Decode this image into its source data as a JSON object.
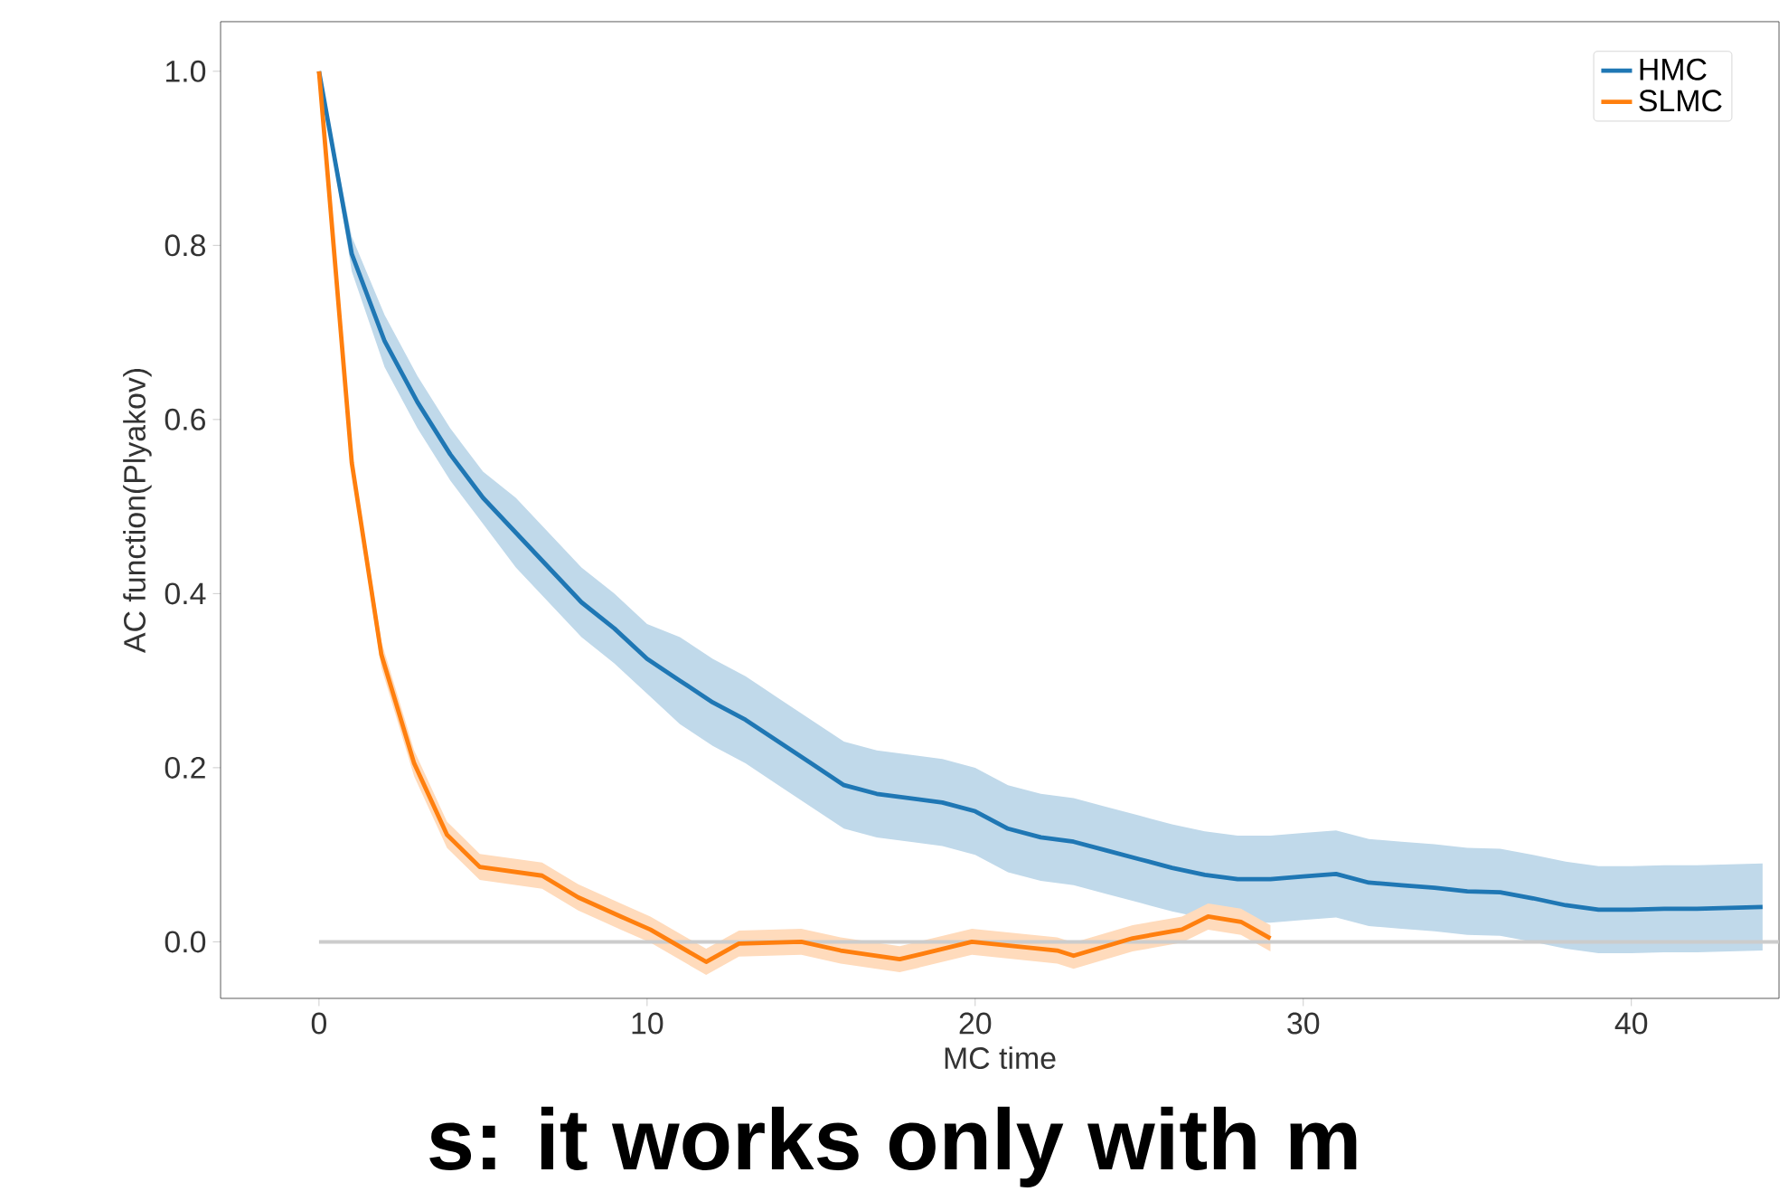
{
  "chart_data": {
    "type": "line",
    "xlabel": "MC time",
    "ylabel": "AC function(Plyakov)",
    "xlim": [
      -3,
      44.5
    ],
    "ylim": [
      -0.065,
      1.057
    ],
    "xticks": [
      0,
      10,
      20,
      30,
      40
    ],
    "yticks": [
      {
        "value": 0,
        "label": "0.0"
      },
      {
        "value": 0.2,
        "label": "0.2"
      },
      {
        "value": 0.4,
        "label": "0.4"
      },
      {
        "value": 0.6,
        "label": "0.6"
      },
      {
        "value": 0.8,
        "label": "0.8"
      },
      {
        "value": 1,
        "label": "1.0"
      }
    ],
    "legend": "top right",
    "grid": false,
    "ref_lines": [
      {
        "axis": "y",
        "value": 0,
        "color": "#cccccc"
      }
    ],
    "annotations": [
      "s: it works only with m"
    ],
    "series": [
      {
        "name": "HMC",
        "color": "#1f77b4",
        "x": [
          0,
          1,
          2,
          3,
          4,
          5,
          6,
          7,
          8,
          9,
          10,
          11,
          12,
          13,
          14,
          15,
          16,
          17,
          18,
          19,
          20,
          21,
          22,
          23,
          24,
          25,
          26,
          27,
          28,
          29,
          30,
          31,
          32,
          33,
          34,
          35,
          36,
          37,
          38,
          39,
          40,
          41,
          42,
          43,
          44
        ],
        "values": [
          1.0,
          0.79,
          0.69,
          0.62,
          0.56,
          0.51,
          0.47,
          0.43,
          0.39,
          0.36,
          0.325,
          0.3,
          0.275,
          0.255,
          0.23,
          0.205,
          0.18,
          0.17,
          0.165,
          0.16,
          0.15,
          0.13,
          0.12,
          0.115,
          0.105,
          0.095,
          0.085,
          0.077,
          0.072,
          0.072,
          0.075,
          0.078,
          0.068,
          0.065,
          0.062,
          0.058,
          0.057,
          0.05,
          0.042,
          0.037,
          0.037,
          0.038,
          0.038,
          0.039,
          0.04
        ],
        "lower": [
          1.0,
          0.77,
          0.66,
          0.59,
          0.53,
          0.48,
          0.43,
          0.39,
          0.35,
          0.32,
          0.285,
          0.25,
          0.225,
          0.205,
          0.18,
          0.155,
          0.13,
          0.12,
          0.115,
          0.11,
          0.1,
          0.08,
          0.07,
          0.065,
          0.055,
          0.045,
          0.035,
          0.027,
          0.022,
          0.022,
          0.025,
          0.028,
          0.018,
          0.015,
          0.012,
          0.008,
          0.007,
          0.0,
          -0.008,
          -0.013,
          -0.013,
          -0.012,
          -0.012,
          -0.011,
          -0.01
        ],
        "upper": [
          1.0,
          0.81,
          0.72,
          0.65,
          0.59,
          0.54,
          0.51,
          0.47,
          0.43,
          0.4,
          0.365,
          0.35,
          0.325,
          0.305,
          0.28,
          0.255,
          0.23,
          0.22,
          0.215,
          0.21,
          0.2,
          0.18,
          0.17,
          0.165,
          0.155,
          0.145,
          0.135,
          0.127,
          0.122,
          0.122,
          0.125,
          0.128,
          0.118,
          0.115,
          0.112,
          0.108,
          0.107,
          0.1,
          0.092,
          0.087,
          0.087,
          0.088,
          0.088,
          0.089,
          0.09
        ]
      },
      {
        "name": "SLMC",
        "color": "#ff7f0e",
        "x": [
          0,
          1,
          1.9,
          2.9,
          3.9,
          4.9,
          6.8,
          7.9,
          9.2,
          10.1,
          11.8,
          12.8,
          14.7,
          15.9,
          17.7,
          19.9,
          22.5,
          23,
          24.8,
          26.3,
          27.1,
          28.1,
          29
        ],
        "values": [
          1.0,
          0.55,
          0.33,
          0.205,
          0.123,
          0.086,
          0.076,
          0.051,
          0.029,
          0.014,
          -0.023,
          -0.002,
          0.0,
          -0.01,
          -0.02,
          0.0,
          -0.01,
          -0.016,
          0.004,
          0.014,
          0.029,
          0.023,
          0.004
        ],
        "lower": [
          1.0,
          0.54,
          0.315,
          0.19,
          0.108,
          0.071,
          0.061,
          0.036,
          0.014,
          -0.001,
          -0.038,
          -0.017,
          -0.015,
          -0.025,
          -0.035,
          -0.015,
          -0.025,
          -0.031,
          -0.011,
          -0.001,
          0.014,
          0.008,
          -0.011
        ],
        "upper": [
          1.0,
          0.56,
          0.345,
          0.22,
          0.138,
          0.101,
          0.091,
          0.066,
          0.044,
          0.029,
          -0.008,
          0.013,
          0.015,
          0.005,
          -0.005,
          0.015,
          0.005,
          -0.001,
          0.019,
          0.029,
          0.044,
          0.038,
          0.019
        ]
      }
    ]
  }
}
